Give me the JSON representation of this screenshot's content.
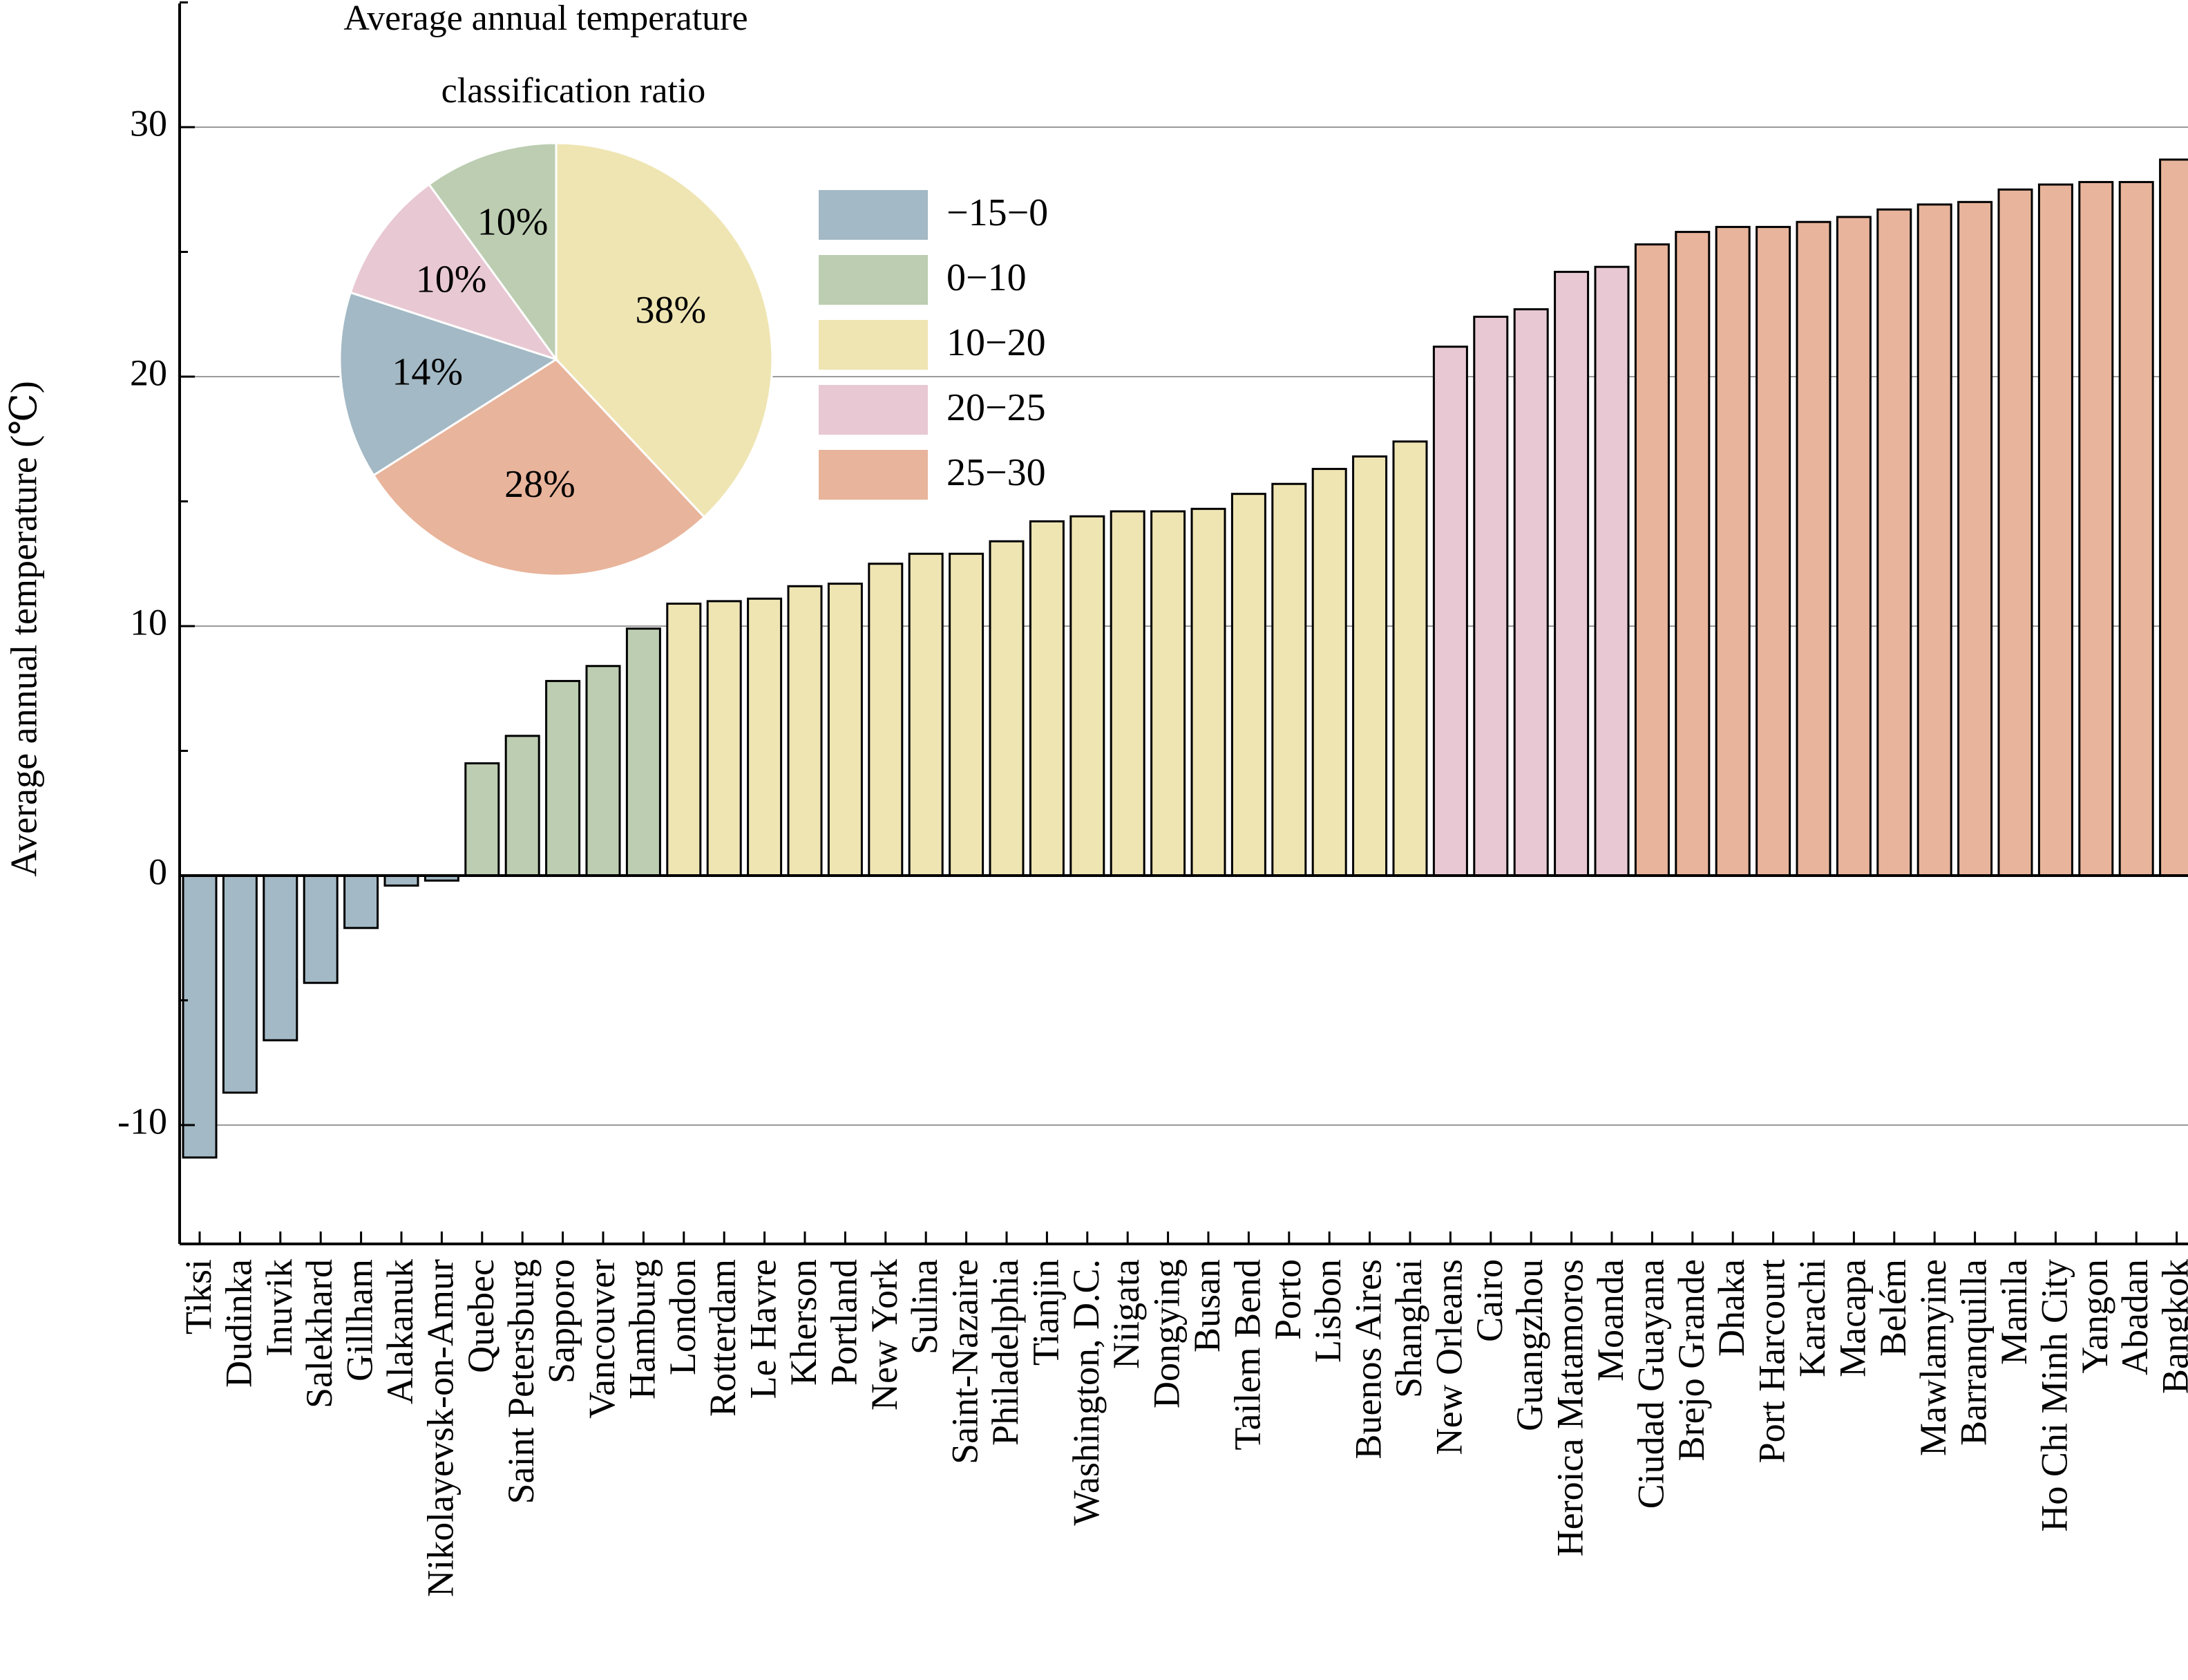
{
  "chart_data": [
    {
      "type": "bar",
      "ylabel": "Average annual temperature (℃)",
      "ylim": [
        -15,
        35
      ],
      "yticks": [
        -10,
        0,
        10,
        20,
        30
      ],
      "grid": true,
      "categories": [
        "Tiksi",
        "Dudinka",
        "Inuvik",
        "Salekhard",
        "Gillham",
        "Alakanuk",
        "Nikolayevsk-on-Amur",
        "Quebec",
        "Saint Petersburg",
        "Sapporo",
        "Vancouver",
        "Hamburg",
        "London",
        "Rotterdam",
        "Le Havre",
        "Kherson",
        "Portland",
        "New York",
        "Sulina",
        "Saint-Nazaire",
        "Philadelphia",
        "Tianjin",
        "Washington, D.C.",
        "Niigata",
        "Dongying",
        "Busan",
        "Tailem Bend",
        "Porto",
        "Lisbon",
        "Buenos Aires",
        "Shanghai",
        "New Orleans",
        "Cairo",
        "Guangzhou",
        "Heroica Matamoros",
        "Moanda",
        "Ciudad Guayana",
        "Brejo Grande",
        "Dhaka",
        "Port Harcourt",
        "Karachi",
        "Macapa",
        "Belém",
        "Mawlamyine",
        "Barranquilla",
        "Manila",
        "Ho Chi Minh City",
        "Yangon",
        "Abadan",
        "Bangkok"
      ],
      "values": [
        -11.3,
        -8.7,
        -6.6,
        -4.3,
        -2.1,
        -0.4,
        -0.2,
        4.5,
        5.6,
        7.8,
        8.4,
        9.9,
        10.9,
        11.0,
        11.1,
        11.6,
        11.7,
        12.5,
        12.9,
        12.9,
        13.4,
        14.2,
        14.4,
        14.6,
        14.6,
        14.7,
        15.3,
        15.7,
        16.3,
        16.8,
        17.4,
        21.2,
        22.4,
        22.7,
        24.2,
        24.4,
        25.3,
        25.8,
        26.0,
        26.0,
        26.2,
        26.4,
        26.7,
        26.9,
        27.0,
        27.5,
        27.7,
        27.8,
        27.8,
        28.7
      ],
      "group_colors": [
        "#a3b9c5",
        "#bccdb1",
        "#efe5b3",
        "#e8c8d3",
        "#e8b49b"
      ],
      "groups": [
        0,
        0,
        0,
        0,
        0,
        0,
        0,
        1,
        1,
        1,
        1,
        1,
        2,
        2,
        2,
        2,
        2,
        2,
        2,
        2,
        2,
        2,
        2,
        2,
        2,
        2,
        2,
        2,
        2,
        2,
        2,
        3,
        3,
        3,
        3,
        3,
        4,
        4,
        4,
        4,
        4,
        4,
        4,
        4,
        4,
        4,
        4,
        4,
        4,
        4
      ]
    },
    {
      "type": "pie",
      "title_line1": "Average annual temperature",
      "title_line2": "classification ratio",
      "slices": [
        {
          "label": "−15−0",
          "value": 14,
          "text": "14%",
          "color": "#a3b9c5"
        },
        {
          "label": "0−10",
          "value": 10,
          "text": "10%",
          "color": "#bccdb1"
        },
        {
          "label": "10−20",
          "value": 38,
          "text": "38%",
          "color": "#efe5b3"
        },
        {
          "label": "20−25",
          "value": 10,
          "text": "10%",
          "color": "#e8c8d3"
        },
        {
          "label": "25−30",
          "value": 28,
          "text": "28%",
          "color": "#e8b49b"
        }
      ],
      "legend_position": "right of pie"
    }
  ]
}
